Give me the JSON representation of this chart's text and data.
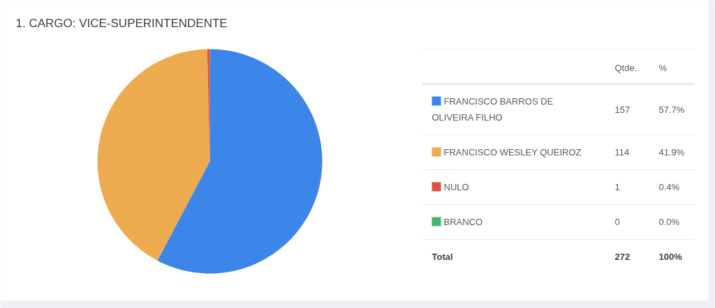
{
  "chart_data": {
    "type": "pie",
    "title": "1. CARGO: VICE-SUPERINTENDENTE",
    "categories": [
      "FRANCISCO BARROS DE OLIVEIRA FILHO",
      "FRANCISCO WESLEY QUEIROZ",
      "NULO",
      "BRANCO"
    ],
    "values": [
      157,
      114,
      1,
      0
    ],
    "colors": [
      "#3b86e8",
      "#eeaa4e",
      "#dd4f43",
      "#3eba6b"
    ],
    "value_labels": [
      "157",
      "114",
      "1",
      "0"
    ],
    "legend": "right",
    "annotations": [
      "Qtde.",
      "%",
      "57.7%",
      "41.9%",
      "0.4%",
      "0.0%",
      "Total",
      "272",
      "100%"
    ]
  }
}
